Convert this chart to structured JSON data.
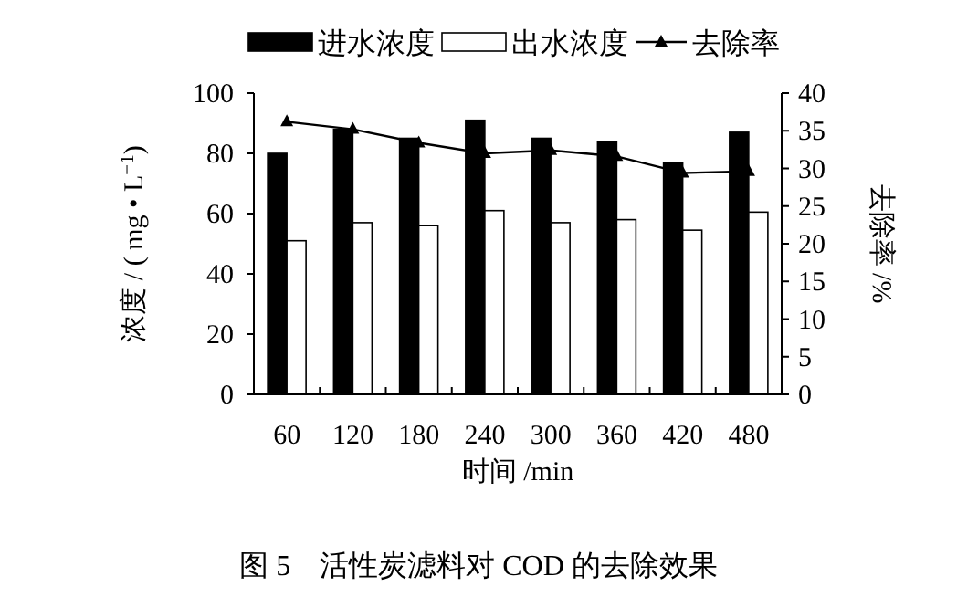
{
  "chart_data": {
    "type": "bar",
    "categories": [
      "60",
      "120",
      "180",
      "240",
      "300",
      "360",
      "420",
      "480"
    ],
    "xlabel": "时间 /min",
    "ylabel": "浓度 / ( mg • L$^{−1}$)",
    "y2label": "去除率 /%",
    "series": [
      {
        "name": "进水浓度",
        "color": "#000000",
        "values": [
          80,
          88,
          85,
          91,
          85,
          84,
          77,
          87
        ]
      },
      {
        "name": "出水浓度",
        "color": "#ffffff",
        "values": [
          51,
          57,
          56,
          61,
          57,
          58,
          54.5,
          60.5
        ]
      },
      {
        "name": "去除率",
        "type": "line",
        "axis": "y2",
        "color": "#000000",
        "values": [
          36.2,
          35.2,
          33.4,
          32,
          32.4,
          31.6,
          29.4,
          29.6
        ]
      }
    ],
    "ylim": [
      0,
      100
    ],
    "yticks": [
      0,
      20,
      40,
      60,
      80,
      100
    ],
    "y2lim": [
      0,
      40
    ],
    "y2ticks": [
      0,
      5,
      10,
      15,
      20,
      25,
      30,
      35,
      40
    ],
    "marker": "triangle",
    "legend": "top",
    "grid": false,
    "annotations": [
      "图 5　活性炭滤料对 COD 的去除效果"
    ]
  }
}
